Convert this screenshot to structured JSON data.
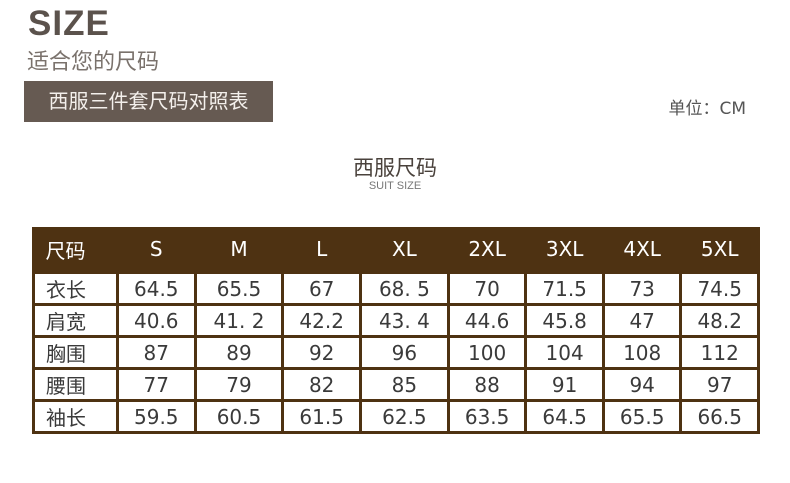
{
  "header": {
    "title": "SIZE",
    "subtitle": "适合您的尺码",
    "banner": "西服三件套尺码对照表",
    "unit": "单位：CM"
  },
  "table_title": "西服尺码",
  "table_subtitle": "SUIT SIZE",
  "colors": {
    "table_border": "#4e3212",
    "banner_bg": "#665a52"
  },
  "table": {
    "headers": [
      "尺码",
      "S",
      "M",
      "L",
      "XL",
      "2XL",
      "3XL",
      "4XL",
      "5XL"
    ],
    "rows": [
      [
        "衣长",
        "64.5",
        "65.5",
        "67",
        "68. 5",
        "70",
        "71.5",
        "73",
        "74.5"
      ],
      [
        "肩宽",
        "40.6",
        "41. 2",
        "42.2",
        "43. 4",
        "44.6",
        "45.8",
        "47",
        "48.2"
      ],
      [
        "胸围",
        "87",
        "89",
        "92",
        "96",
        "100",
        "104",
        "108",
        "112"
      ],
      [
        "腰围",
        "77",
        "79",
        "82",
        "85",
        "88",
        "91",
        "94",
        "97"
      ],
      [
        "袖长",
        "59.5",
        "60.5",
        "61.5",
        "62.5",
        "63.5",
        "64.5",
        "65.5",
        "66.5"
      ]
    ]
  }
}
